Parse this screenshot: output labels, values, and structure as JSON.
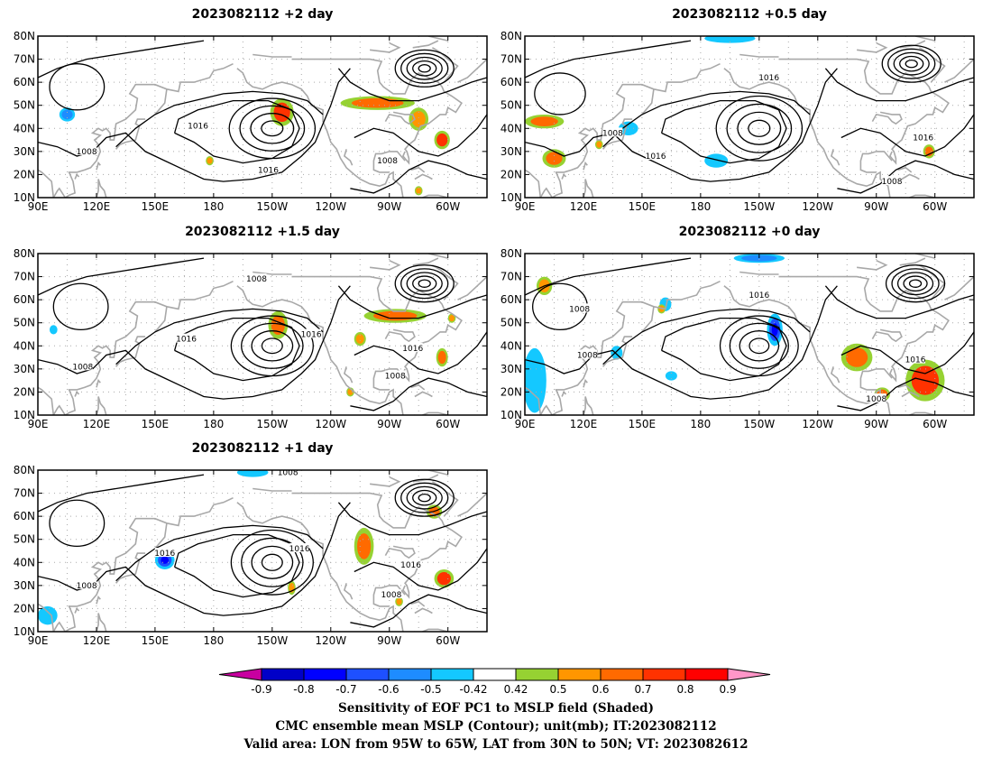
{
  "panels": [
    {
      "title": "2023082112 +2 day",
      "lows": [
        {
          "lon": -150,
          "lat": 40,
          "rx": 22,
          "ry": 13,
          "rings": 4
        },
        {
          "lon": -72,
          "lat": 66,
          "rx": 15,
          "ry": 8,
          "rings": 5
        },
        {
          "lon": 110,
          "lat": 58,
          "rx": 14,
          "ry": 10,
          "rings": 1
        }
      ],
      "contour_labels": [
        {
          "text": "1016",
          "lon": 172,
          "lat": 41
        },
        {
          "text": "1016",
          "lon": -152,
          "lat": 22
        },
        {
          "text": "1008",
          "lon": 115,
          "lat": 30
        },
        {
          "text": "1008",
          "lon": -91,
          "lat": 26
        }
      ],
      "shading": [
        {
          "lon": -145,
          "lat": 47,
          "rlon": 6,
          "rlat": 6,
          "v": 0.7
        },
        {
          "lon": -96,
          "lat": 51,
          "rlon": 19,
          "rlat": 3,
          "v": 0.6
        },
        {
          "lon": -75,
          "lat": 44,
          "rlon": 5,
          "rlat": 5,
          "v": 0.5
        },
        {
          "lon": -63,
          "lat": 35,
          "rlon": 4,
          "rlat": 4,
          "v": 0.7
        },
        {
          "lon": 105,
          "lat": 46,
          "rlon": 4,
          "rlat": 3,
          "v": -0.6
        },
        {
          "lon": 178,
          "lat": 26,
          "rlon": 2,
          "rlat": 2,
          "v": 0.5
        },
        {
          "lon": -75,
          "lat": 13,
          "rlon": 2,
          "rlat": 2,
          "v": 0.5
        }
      ]
    },
    {
      "title": "2023082112 +0.5 day",
      "lows": [
        {
          "lon": -150,
          "lat": 40,
          "rx": 22,
          "ry": 14,
          "rings": 4
        },
        {
          "lon": -72,
          "lat": 68,
          "rx": 15,
          "ry": 8,
          "rings": 5
        },
        {
          "lon": 108,
          "lat": 55,
          "rx": 13,
          "ry": 9,
          "rings": 1
        }
      ],
      "contour_labels": [
        {
          "text": "1016",
          "lon": -145,
          "lat": 62
        },
        {
          "text": "1008",
          "lon": 135,
          "lat": 38
        },
        {
          "text": "1016",
          "lon": 157,
          "lat": 28
        },
        {
          "text": "1016",
          "lon": -66,
          "lat": 36
        },
        {
          "text": "1008",
          "lon": -82,
          "lat": 17
        }
      ],
      "shading": [
        {
          "lon": 100,
          "lat": 43,
          "rlon": 10,
          "rlat": 3,
          "v": 0.6
        },
        {
          "lon": 105,
          "lat": 27,
          "rlon": 6,
          "rlat": 4,
          "v": 0.6
        },
        {
          "lon": 143,
          "lat": 40,
          "rlon": 5,
          "rlat": 3,
          "v": -0.5
        },
        {
          "lon": -172,
          "lat": 26,
          "rlon": 6,
          "rlat": 3,
          "v": -0.5
        },
        {
          "lon": -165,
          "lat": 79,
          "rlon": 13,
          "rlat": 2,
          "v": -0.5
        },
        {
          "lon": -63,
          "lat": 30,
          "rlon": 3,
          "rlat": 3,
          "v": 0.6
        },
        {
          "lon": 128,
          "lat": 33,
          "rlon": 2,
          "rlat": 2,
          "v": 0.5
        }
      ]
    },
    {
      "title": "2023082112 +1.5 day",
      "lows": [
        {
          "lon": -150,
          "lat": 40,
          "rx": 21,
          "ry": 13,
          "rings": 4
        },
        {
          "lon": -72,
          "lat": 67,
          "rx": 15,
          "ry": 8,
          "rings": 5
        },
        {
          "lon": 112,
          "lat": 57,
          "rx": 14,
          "ry": 10,
          "rings": 1
        }
      ],
      "contour_labels": [
        {
          "text": "1008",
          "lon": -158,
          "lat": 69
        },
        {
          "text": "1016",
          "lon": 166,
          "lat": 43
        },
        {
          "text": "1016",
          "lon": -130,
          "lat": 45
        },
        {
          "text": "1016",
          "lon": -78,
          "lat": 39
        },
        {
          "text": "1008",
          "lon": 113,
          "lat": 31
        },
        {
          "text": "1008",
          "lon": -87,
          "lat": 27
        }
      ],
      "shading": [
        {
          "lon": -147,
          "lat": 49,
          "rlon": 5,
          "rlat": 6,
          "v": 0.6
        },
        {
          "lon": -87,
          "lat": 53,
          "rlon": 16,
          "rlat": 3,
          "v": 0.6
        },
        {
          "lon": -63,
          "lat": 35,
          "rlon": 3,
          "rlat": 4,
          "v": 0.6
        },
        {
          "lon": -105,
          "lat": 43,
          "rlon": 3,
          "rlat": 3,
          "v": 0.5
        },
        {
          "lon": -110,
          "lat": 20,
          "rlon": 2,
          "rlat": 2,
          "v": 0.5
        },
        {
          "lon": -58,
          "lat": 52,
          "rlon": 2,
          "rlat": 2,
          "v": 0.5
        },
        {
          "lon": 98,
          "lat": 47,
          "rlon": 2,
          "rlat": 2,
          "v": -0.5
        }
      ]
    },
    {
      "title": "2023082112 +0 day",
      "lows": [
        {
          "lon": -150,
          "lat": 40,
          "rx": 20,
          "ry": 13,
          "rings": 4
        },
        {
          "lon": -70,
          "lat": 67,
          "rx": 15,
          "ry": 8,
          "rings": 5
        },
        {
          "lon": 108,
          "lat": 57,
          "rx": 14,
          "ry": 10,
          "rings": 1
        }
      ],
      "contour_labels": [
        {
          "text": "1016",
          "lon": -150,
          "lat": 62
        },
        {
          "text": "1008",
          "lon": 118,
          "lat": 56
        },
        {
          "text": "1008",
          "lon": 122,
          "lat": 36
        },
        {
          "text": "1016",
          "lon": -70,
          "lat": 34
        },
        {
          "text": "1008",
          "lon": -90,
          "lat": 17
        }
      ],
      "shading": [
        {
          "lon": -150,
          "lat": 78,
          "rlon": 13,
          "rlat": 2,
          "v": -0.6
        },
        {
          "lon": -142,
          "lat": 47,
          "rlon": 4,
          "rlat": 7,
          "v": -0.7
        },
        {
          "lon": 162,
          "lat": 58,
          "rlon": 3,
          "rlat": 3,
          "v": -0.5
        },
        {
          "lon": 137,
          "lat": 37,
          "rlon": 3,
          "rlat": 3,
          "v": -0.5
        },
        {
          "lon": 95,
          "lat": 25,
          "rlon": 6,
          "rlat": 14,
          "v": -0.5
        },
        {
          "lon": 100,
          "lat": 66,
          "rlon": 4,
          "rlat": 4,
          "v": 0.5
        },
        {
          "lon": -100,
          "lat": 35,
          "rlon": 8,
          "rlat": 6,
          "v": 0.6
        },
        {
          "lon": -65,
          "lat": 25,
          "rlon": 10,
          "rlat": 9,
          "v": 0.7
        },
        {
          "lon": -87,
          "lat": 19,
          "rlon": 4,
          "rlat": 3,
          "v": 0.6
        },
        {
          "lon": 160,
          "lat": 56,
          "rlon": 2,
          "rlat": 2,
          "v": 0.5
        },
        {
          "lon": 165,
          "lat": 27,
          "rlon": 3,
          "rlat": 2,
          "v": -0.5
        }
      ]
    },
    {
      "title": "2023082112 +1 day",
      "lows": [
        {
          "lon": -150,
          "lat": 40,
          "rx": 21,
          "ry": 14,
          "rings": 4
        },
        {
          "lon": -72,
          "lat": 68,
          "rx": 15,
          "ry": 8,
          "rings": 5
        },
        {
          "lon": 110,
          "lat": 57,
          "rx": 14,
          "ry": 10,
          "rings": 1
        }
      ],
      "contour_labels": [
        {
          "text": "1008",
          "lon": -142,
          "lat": 79
        },
        {
          "text": "1016",
          "lon": 155,
          "lat": 44
        },
        {
          "text": "1016",
          "lon": -136,
          "lat": 46
        },
        {
          "text": "1016",
          "lon": -79,
          "lat": 39
        },
        {
          "text": "1008",
          "lon": 115,
          "lat": 30
        },
        {
          "text": "1008",
          "lon": -89,
          "lat": 26
        }
      ],
      "shading": [
        {
          "lon": 155,
          "lat": 41,
          "rlon": 5,
          "rlat": 4,
          "v": -0.7
        },
        {
          "lon": -103,
          "lat": 47,
          "rlon": 5,
          "rlat": 8,
          "v": 0.6
        },
        {
          "lon": -67,
          "lat": 62,
          "rlon": 4,
          "rlat": 3,
          "v": 0.6
        },
        {
          "lon": -62,
          "lat": 33,
          "rlon": 5,
          "rlat": 4,
          "v": 0.7
        },
        {
          "lon": 95,
          "lat": 17,
          "rlon": 5,
          "rlat": 4,
          "v": -0.5
        },
        {
          "lon": -160,
          "lat": 79,
          "rlon": 8,
          "rlat": 2,
          "v": -0.5
        },
        {
          "lon": -140,
          "lat": 29,
          "rlon": 2,
          "rlat": 3,
          "v": 0.5
        },
        {
          "lon": -85,
          "lat": 23,
          "rlon": 2,
          "rlat": 2,
          "v": 0.5
        }
      ]
    }
  ],
  "axes": {
    "lon_ticks": [
      "90E",
      "120E",
      "150E",
      "180",
      "150W",
      "120W",
      "90W",
      "60W"
    ],
    "lat_ticks": [
      "10N",
      "20N",
      "30N",
      "40N",
      "50N",
      "60N",
      "70N",
      "80N"
    ],
    "lon_range": [
      90,
      320
    ],
    "lat_range": [
      10,
      80
    ]
  },
  "colorbar": {
    "labels": [
      "-0.9",
      "-0.8",
      "-0.7",
      "-0.6",
      "-0.5",
      "-0.42",
      "0.42",
      "0.5",
      "0.6",
      "0.7",
      "0.8",
      "0.9"
    ],
    "colors": [
      "#0000c8",
      "#0000ff",
      "#1e50ff",
      "#1e8cff",
      "#14c8ff",
      "#ffffff",
      "#96d232",
      "#ff9600",
      "#ff6a00",
      "#ff3200",
      "#ff0000"
    ],
    "low_extend_color": "#c800a0",
    "high_extend_color": "#ff96c8"
  },
  "caption": {
    "line1": "Sensitivity of EOF PC1 to MSLP field (Shaded)",
    "line2": "CMC ensemble mean MSLP (Contour); unit(mb); IT:2023082112",
    "line3": "Valid area: LON from 95W to 65W, LAT from 30N to 50N; VT: 2023082612"
  }
}
